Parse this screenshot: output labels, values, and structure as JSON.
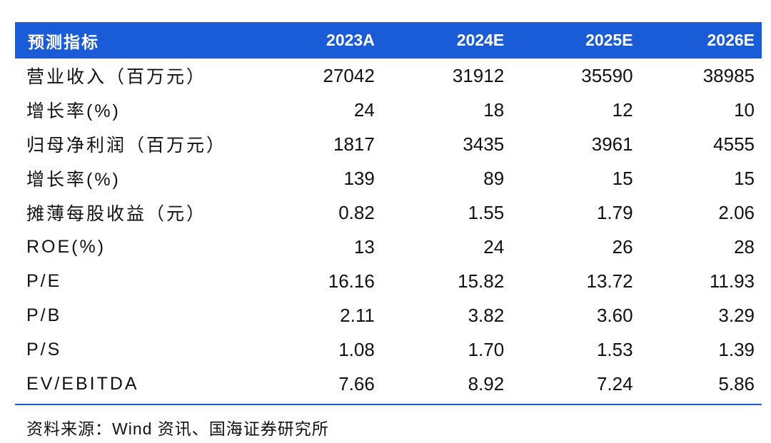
{
  "table": {
    "headers": [
      "预测指标",
      "2023A",
      "2024E",
      "2025E",
      "2026E"
    ],
    "rows": [
      {
        "label": "营业收入（百万元）",
        "values": [
          "27042",
          "31912",
          "35590",
          "38985"
        ]
      },
      {
        "label": "增长率(%)",
        "values": [
          "24",
          "18",
          "12",
          "10"
        ]
      },
      {
        "label": "归母净利润（百万元）",
        "values": [
          "1817",
          "3435",
          "3961",
          "4555"
        ]
      },
      {
        "label": "增长率(%)",
        "values": [
          "139",
          "89",
          "15",
          "15"
        ]
      },
      {
        "label": "摊薄每股收益（元）",
        "values": [
          "0.82",
          "1.55",
          "1.79",
          "2.06"
        ]
      },
      {
        "label": "ROE(%)",
        "values": [
          "13",
          "24",
          "26",
          "28"
        ]
      },
      {
        "label": "P/E",
        "values": [
          "16.16",
          "15.82",
          "13.72",
          "11.93"
        ]
      },
      {
        "label": "P/B",
        "values": [
          "2.11",
          "3.82",
          "3.60",
          "3.29"
        ]
      },
      {
        "label": "P/S",
        "values": [
          "1.08",
          "1.70",
          "1.53",
          "1.39"
        ]
      },
      {
        "label": "EV/EBITDA",
        "values": [
          "7.66",
          "8.92",
          "7.24",
          "5.86"
        ]
      }
    ]
  },
  "colors": {
    "header_bg": "#1a5bd8",
    "header_text": "#ffffff",
    "rule": "#1a5bd8"
  },
  "source": "资料来源：Wind 资讯、国海证券研究所"
}
